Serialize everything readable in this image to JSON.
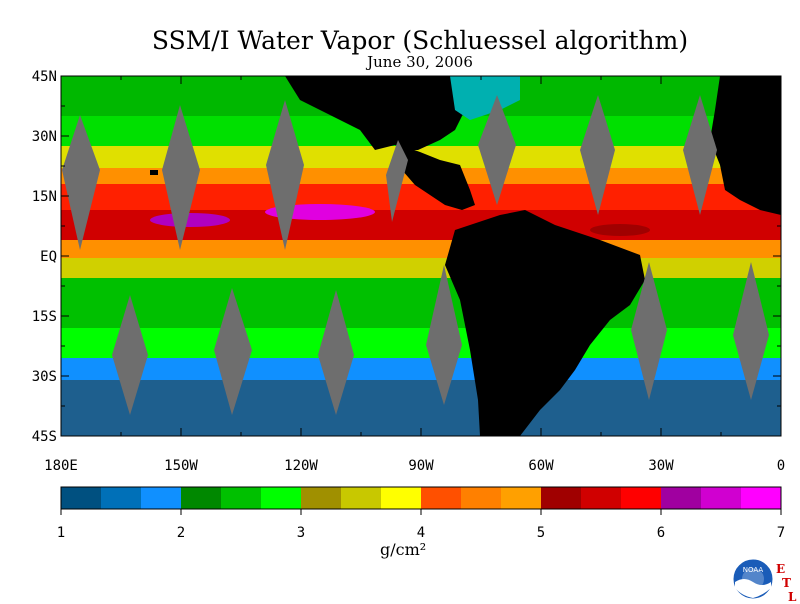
{
  "title": "SSM/I Water Vapor (Schluessel algorithm)",
  "date": "June 30, 2006",
  "map": {
    "lat_ticks": [
      "45N",
      "30N",
      "15N",
      "EQ",
      "15S",
      "30S",
      "45S"
    ],
    "lon_ticks": [
      "180E",
      "150W",
      "120W",
      "90W",
      "60W",
      "30W",
      "0"
    ],
    "lon_range": [
      -180,
      0
    ],
    "lat_range": [
      -45,
      45
    ],
    "colors": {
      "land": "#000000",
      "no_data_swath_gap": "#707070",
      "ocean_low": "#1e5f8e",
      "ocean_high": "#ff00ff"
    }
  },
  "colorbar": {
    "ticks": [
      "1",
      "2",
      "3",
      "4",
      "5",
      "6",
      "7"
    ],
    "unit": "g/cm²",
    "colors": [
      "#005080",
      "#0070b8",
      "#1090ff",
      "#008800",
      "#00c000",
      "#00ff00",
      "#a09000",
      "#c8c800",
      "#ffff00",
      "#ff5000",
      "#ff8000",
      "#ffa000",
      "#a00000",
      "#d00000",
      "#ff0000",
      "#a000a0",
      "#d000d0",
      "#ff00ff"
    ]
  },
  "logos": {
    "noaa": "NOAA",
    "lab_letters": [
      "E",
      "T",
      "L"
    ]
  }
}
